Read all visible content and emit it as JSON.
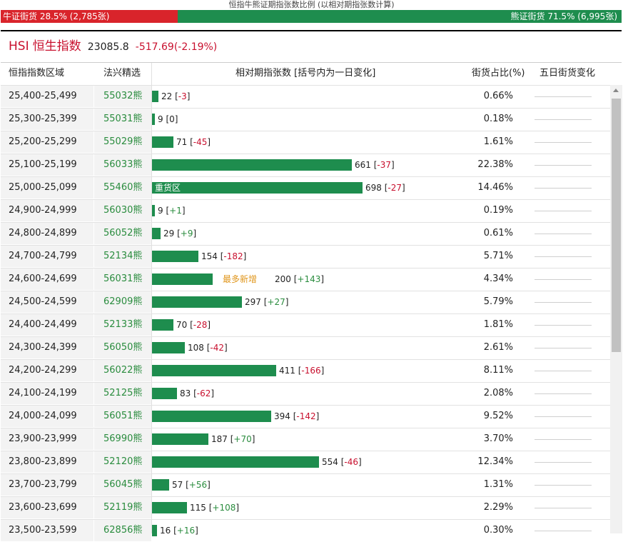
{
  "caption": "恒指牛熊证期指张数比例 (以相对期指张数计算)",
  "ratio": {
    "bull_label": "牛证街货 28.5% (2,785张)",
    "bear_label": "熊证街货 71.5% (6,995张)",
    "bull_pct": 28.5,
    "bull_color": "#d9242b",
    "bear_color": "#1e8d4e"
  },
  "index": {
    "code": "HSI",
    "name": "恒生指数",
    "price": "23085.8",
    "change": "-517.69(-2.19%)"
  },
  "columns": {
    "range": "恒指指数区域",
    "pick": "法兴精选",
    "count": "相对期指张数 [括号内为一日变化]",
    "share": "街货占比(%)",
    "five_day": "五日街货变化"
  },
  "rows": [
    {
      "range": "25,400-25,499",
      "pick": "55032熊",
      "count": 22,
      "change": "-3",
      "share": "0.66%"
    },
    {
      "range": "25,300-25,399",
      "pick": "55031熊",
      "count": 9,
      "change": "0",
      "share": "0.18%"
    },
    {
      "range": "25,200-25,299",
      "pick": "55029熊",
      "count": 71,
      "change": "-45",
      "share": "1.61%"
    },
    {
      "range": "25,100-25,199",
      "pick": "56033熊",
      "count": 661,
      "change": "-37",
      "share": "22.38%"
    },
    {
      "range": "25,000-25,099",
      "pick": "55460熊",
      "count": 698,
      "change": "-27",
      "share": "14.46%",
      "tag": "重货区"
    },
    {
      "range": "24,900-24,999",
      "pick": "56030熊",
      "count": 9,
      "change": "+1",
      "share": "0.19%"
    },
    {
      "range": "24,800-24,899",
      "pick": "56052熊",
      "count": 29,
      "change": "+9",
      "share": "0.61%"
    },
    {
      "range": "24,700-24,799",
      "pick": "52134熊",
      "count": 154,
      "change": "-182",
      "share": "5.71%"
    },
    {
      "range": "24,600-24,699",
      "pick": "56031熊",
      "count": 200,
      "change": "+143",
      "share": "4.34%",
      "hot": "最多新增"
    },
    {
      "range": "24,500-24,599",
      "pick": "62909熊",
      "count": 297,
      "change": "+27",
      "share": "5.79%"
    },
    {
      "range": "24,400-24,499",
      "pick": "52133熊",
      "count": 70,
      "change": "-28",
      "share": "1.81%"
    },
    {
      "range": "24,300-24,399",
      "pick": "56050熊",
      "count": 108,
      "change": "-42",
      "share": "2.61%"
    },
    {
      "range": "24,200-24,299",
      "pick": "56022熊",
      "count": 411,
      "change": "-166",
      "share": "8.11%"
    },
    {
      "range": "24,100-24,199",
      "pick": "52125熊",
      "count": 83,
      "change": "-62",
      "share": "2.08%"
    },
    {
      "range": "24,000-24,099",
      "pick": "56051熊",
      "count": 394,
      "change": "-142",
      "share": "9.52%"
    },
    {
      "range": "23,900-23,999",
      "pick": "56990熊",
      "count": 187,
      "change": "+70",
      "share": "3.70%"
    },
    {
      "range": "23,800-23,899",
      "pick": "52120熊",
      "count": 554,
      "change": "-46",
      "share": "12.34%"
    },
    {
      "range": "23,700-23,799",
      "pick": "56045熊",
      "count": 57,
      "change": "+56",
      "share": "1.31%"
    },
    {
      "range": "23,600-23,699",
      "pick": "52119熊",
      "count": 115,
      "change": "+108",
      "share": "2.29%"
    },
    {
      "range": "23,500-23,599",
      "pick": "62856熊",
      "count": 16,
      "change": "+16",
      "share": "0.30%"
    }
  ]
}
